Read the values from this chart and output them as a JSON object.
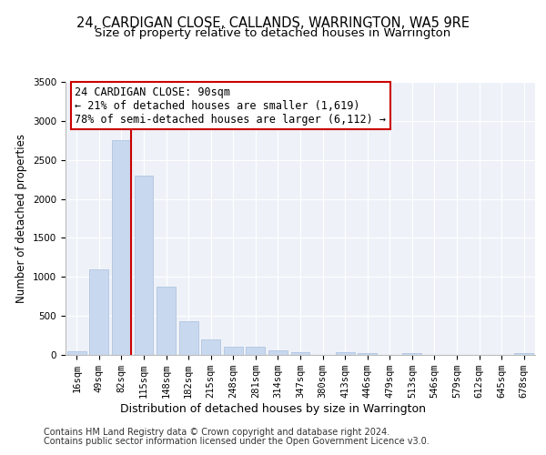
{
  "title": "24, CARDIGAN CLOSE, CALLANDS, WARRINGTON, WA5 9RE",
  "subtitle": "Size of property relative to detached houses in Warrington",
  "xlabel": "Distribution of detached houses by size in Warrington",
  "ylabel": "Number of detached properties",
  "bar_color": "#c8d8ee",
  "bar_edge_color": "#a8bedd",
  "categories": [
    "16sqm",
    "49sqm",
    "82sqm",
    "115sqm",
    "148sqm",
    "182sqm",
    "215sqm",
    "248sqm",
    "281sqm",
    "314sqm",
    "347sqm",
    "380sqm",
    "413sqm",
    "446sqm",
    "479sqm",
    "513sqm",
    "546sqm",
    "579sqm",
    "612sqm",
    "645sqm",
    "678sqm"
  ],
  "values": [
    50,
    1100,
    2750,
    2300,
    880,
    430,
    200,
    105,
    100,
    55,
    40,
    0,
    30,
    20,
    0,
    25,
    0,
    0,
    0,
    0,
    20
  ],
  "vline_x_index": 2,
  "vline_color": "#cc0000",
  "ylim": [
    0,
    3500
  ],
  "yticks": [
    0,
    500,
    1000,
    1500,
    2000,
    2500,
    3000,
    3500
  ],
  "annotation_text": "24 CARDIGAN CLOSE: 90sqm\n← 21% of detached houses are smaller (1,619)\n78% of semi-detached houses are larger (6,112) →",
  "annotation_box_color": "#ffffff",
  "annotation_box_edge": "#cc0000",
  "footnote1": "Contains HM Land Registry data © Crown copyright and database right 2024.",
  "footnote2": "Contains public sector information licensed under the Open Government Licence v3.0.",
  "background_color": "#eef2f8",
  "title_fontsize": 10.5,
  "subtitle_fontsize": 9.5,
  "xlabel_fontsize": 9,
  "ylabel_fontsize": 8.5,
  "tick_fontsize": 7.5,
  "annotation_fontsize": 8.5,
  "footnote_fontsize": 7
}
